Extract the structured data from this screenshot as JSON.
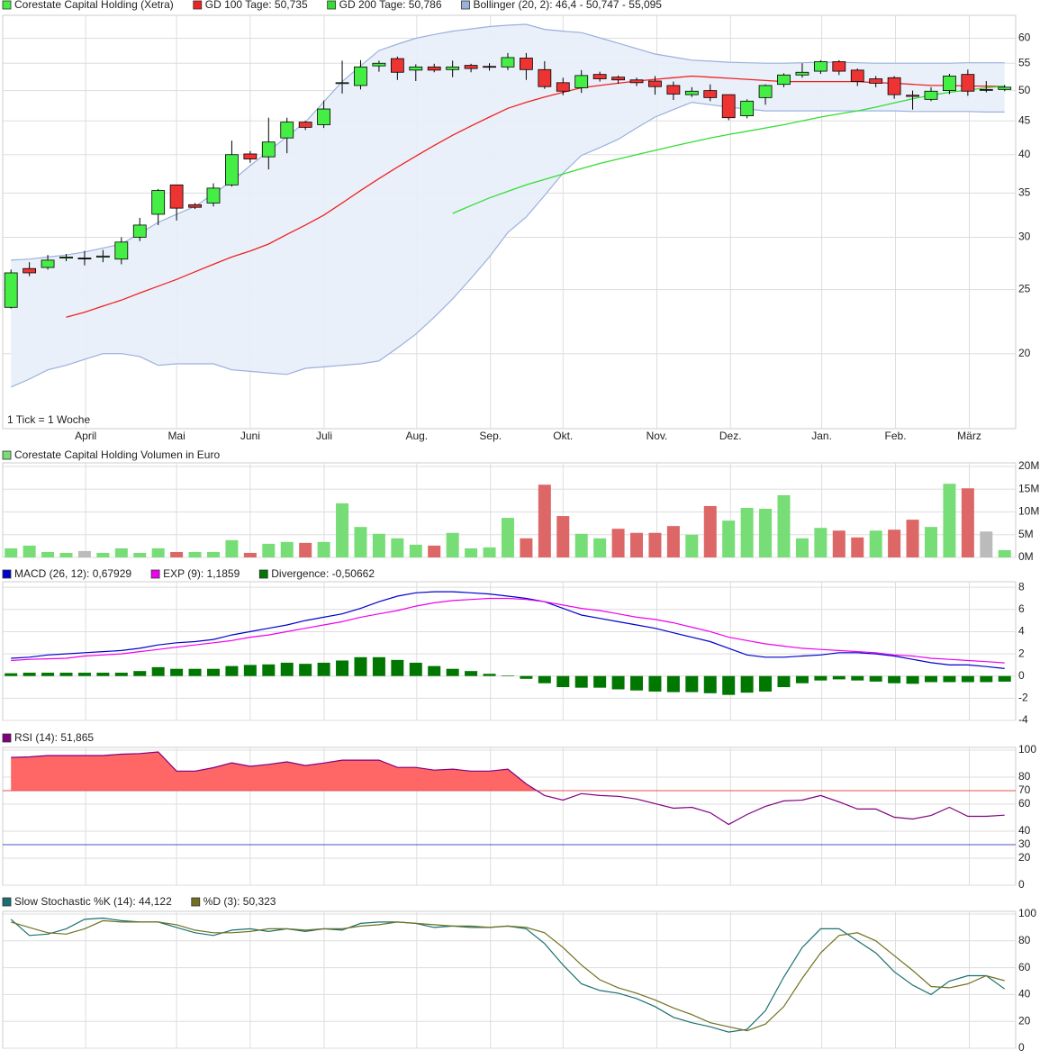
{
  "chart_data": [
    {
      "type": "candlestick",
      "name": "Corestate Capital Holding (Xetra)",
      "color_up": "#44ee44",
      "color_down": "#ee3333",
      "categories": [
        null,
        null,
        null,
        null,
        null,
        null,
        null,
        null,
        null,
        null,
        null,
        null,
        null,
        null,
        null,
        null,
        null,
        null,
        null,
        null,
        null,
        null,
        null,
        null,
        null,
        null,
        null,
        null,
        null,
        null,
        null,
        null,
        null,
        null,
        null,
        null,
        null,
        null,
        null,
        null,
        null,
        null,
        null,
        null,
        null,
        null,
        null,
        null,
        null,
        null,
        null,
        null,
        null,
        null,
        null
      ],
      "open": [
        23.5,
        26.9,
        27.0,
        27.9,
        27.9,
        28.0,
        27.8,
        30.0,
        32.5,
        36.0,
        33.6,
        33.8,
        36.0,
        40.1,
        39.7,
        42.4,
        44.8,
        44.4,
        51.3,
        50.9,
        54.5,
        55.9,
        53.7,
        54.3,
        53.8,
        54.6,
        54.4,
        54.3,
        56.0,
        53.8,
        51.4,
        50.5,
        52.9,
        52.4,
        51.9,
        51.7,
        50.9,
        49.3,
        50.0,
        49.3,
        45.8,
        48.8,
        51.1,
        52.8,
        53.5,
        55.3,
        53.7,
        52.1,
        52.3,
        49.2,
        48.5,
        50.0,
        52.9,
        50.2,
        50.2
      ],
      "high": [
        26.8,
        27.5,
        28.2,
        28.3,
        28.6,
        28.7,
        30.0,
        32.1,
        35.5,
        36.0,
        33.8,
        36.2,
        42.0,
        40.5,
        45.5,
        45.5,
        45.0,
        48.3,
        55.5,
        55.6,
        55.5,
        56.3,
        54.8,
        54.9,
        55.5,
        54.9,
        55.0,
        57.0,
        57.0,
        55.4,
        52.3,
        53.7,
        53.4,
        52.7,
        52.3,
        52.6,
        51.6,
        50.6,
        51.1,
        49.3,
        48.5,
        51.1,
        53.1,
        55.0,
        55.6,
        55.6,
        54.0,
        52.6,
        52.6,
        50.0,
        50.6,
        53.0,
        53.8,
        51.7,
        51.0
      ],
      "low": [
        23.4,
        26.2,
        26.8,
        27.6,
        27.2,
        27.5,
        27.3,
        29.6,
        31.3,
        31.8,
        33.1,
        33.4,
        35.8,
        38.9,
        38.0,
        40.2,
        43.6,
        43.9,
        49.5,
        50.2,
        53.4,
        51.9,
        51.7,
        53.3,
        52.4,
        53.3,
        53.6,
        53.7,
        51.9,
        50.3,
        49.2,
        49.6,
        51.6,
        51.2,
        50.8,
        49.3,
        48.4,
        48.9,
        48.2,
        45.1,
        45.4,
        47.6,
        50.6,
        52.3,
        53.0,
        52.8,
        50.8,
        50.6,
        48.6,
        46.8,
        48.2,
        49.4,
        49.1,
        49.7,
        49.9
      ],
      "close": [
        26.5,
        26.5,
        27.7,
        28.0,
        27.9,
        28.1,
        29.5,
        31.3,
        35.3,
        33.2,
        33.3,
        35.6,
        40.0,
        39.4,
        41.8,
        44.8,
        44.0,
        46.9,
        51.4,
        54.3,
        55.0,
        53.3,
        54.3,
        53.7,
        54.3,
        54.0,
        54.3,
        56.1,
        53.8,
        50.7,
        49.9,
        52.7,
        52.1,
        51.9,
        51.4,
        50.7,
        49.4,
        49.9,
        48.8,
        45.5,
        48.2,
        50.9,
        52.8,
        53.3,
        55.3,
        53.5,
        51.6,
        51.3,
        49.3,
        49.0,
        49.9,
        52.6,
        49.9,
        50.1,
        50.6
      ],
      "series": [
        {
          "name": "GD 100 Tage: 50,735",
          "color": "#ee2222",
          "values": [
            null,
            null,
            null,
            22.7,
            23.1,
            23.6,
            24.1,
            24.7,
            25.3,
            25.9,
            26.6,
            27.3,
            28.0,
            28.6,
            29.3,
            30.3,
            31.3,
            32.4,
            33.8,
            35.3,
            36.8,
            38.3,
            39.8,
            41.3,
            42.8,
            44.2,
            45.6,
            47.0,
            48.0,
            48.9,
            49.7,
            50.5,
            50.9,
            51.3,
            51.7,
            52.0,
            52.3,
            52.6,
            52.4,
            52.2,
            52.0,
            51.8,
            51.6,
            51.6,
            51.6,
            51.6,
            51.6,
            51.4,
            51.3,
            51.1,
            50.9,
            50.9,
            50.8,
            50.8,
            50.735
          ]
        },
        {
          "name": "GD 200 Tage: 50,786",
          "color": "#33dd33",
          "values": [
            null,
            null,
            null,
            null,
            null,
            null,
            null,
            null,
            null,
            null,
            null,
            null,
            null,
            null,
            null,
            null,
            null,
            null,
            null,
            null,
            null,
            null,
            null,
            null,
            32.6,
            33.5,
            34.4,
            35.2,
            36.0,
            36.7,
            37.4,
            38.1,
            38.8,
            39.4,
            40.0,
            40.6,
            41.2,
            41.8,
            42.4,
            42.9,
            43.4,
            43.9,
            44.4,
            45.0,
            45.6,
            46.1,
            46.6,
            47.2,
            47.9,
            48.6,
            49.2,
            49.7,
            50.1,
            50.5,
            50.786
          ]
        },
        {
          "name": "Bollinger (20, 2): 46,4 - 50,747 - 55,095",
          "color": "#9ab0dd",
          "fill": "#e8eefa",
          "kind": "band",
          "upper": [
            27.7,
            27.8,
            28.0,
            28.2,
            28.5,
            28.9,
            29.3,
            30.4,
            31.6,
            32.5,
            33.4,
            34.9,
            36.5,
            38.5,
            40.5,
            42.6,
            44.8,
            48.1,
            51.6,
            54.5,
            57.5,
            58.8,
            60.0,
            60.8,
            61.5,
            62.0,
            62.5,
            62.8,
            63.0,
            61.9,
            61.5,
            61.2,
            60.1,
            59.0,
            57.9,
            56.8,
            56.2,
            55.6,
            55.4,
            55.2,
            55.1,
            55.0,
            55.0,
            55.1,
            55.2,
            55.2,
            55.1,
            55.0,
            55.0,
            55.0,
            55.0,
            55.0,
            55.1,
            55.1,
            55.095
          ],
          "lower": [
            17.8,
            18.3,
            18.9,
            19.2,
            19.6,
            20.0,
            20.0,
            19.8,
            19.2,
            19.3,
            19.3,
            19.3,
            18.9,
            18.8,
            18.7,
            18.6,
            19.0,
            19.1,
            19.2,
            19.3,
            19.5,
            20.4,
            21.4,
            22.7,
            24.2,
            26.0,
            28.0,
            30.5,
            32.2,
            34.7,
            37.5,
            39.9,
            41.0,
            42.2,
            43.9,
            45.6,
            46.8,
            48.0,
            47.6,
            47.2,
            46.9,
            46.6,
            46.6,
            46.6,
            46.6,
            46.6,
            46.6,
            46.6,
            46.6,
            46.5,
            46.5,
            46.5,
            46.5,
            46.4,
            46.4
          ]
        }
      ],
      "xlim": [
        -0.45,
        54.6
      ],
      "xticks": [
        {
          "value": 4.06,
          "label": "April"
        },
        {
          "value": 9.0,
          "label": "Mai"
        },
        {
          "value": 13.0,
          "label": "Juni"
        },
        {
          "value": 17.02,
          "label": "Juli"
        },
        {
          "value": 22.05,
          "label": "Aug."
        },
        {
          "value": 26.06,
          "label": "Sep."
        },
        {
          "value": 30.0,
          "label": "Okt."
        },
        {
          "value": 35.1,
          "label": "Nov."
        },
        {
          "value": 39.1,
          "label": "Dez."
        },
        {
          "value": 44.06,
          "label": "Jan."
        },
        {
          "value": 48.07,
          "label": "Feb."
        },
        {
          "value": 52.08,
          "label": "März"
        }
      ],
      "ylim": [
        15.4,
        65
      ],
      "yticks": [
        20,
        25,
        30,
        35,
        40,
        45,
        50,
        55,
        60
      ],
      "log_scale": true,
      "grid": true,
      "annotation": "1 Tick = 1 Woche"
    },
    {
      "type": "bar",
      "title": "Corestate Capital Holding Volumen in Euro",
      "color": "#77dd77",
      "values": [
        2000000,
        2600000,
        1200000,
        1000000,
        1400000,
        1000000,
        2000000,
        1000000,
        2000000,
        1200000,
        1200000,
        1200000,
        3800000,
        1000000,
        3000000,
        3400000,
        3200000,
        3400000,
        11900000,
        6700000,
        5200000,
        4200000,
        2800000,
        2600000,
        5400000,
        2000000,
        2200000,
        8700000,
        4200000,
        16000000,
        9100000,
        5200000,
        4200000,
        6300000,
        5400000,
        5400000,
        6900000,
        5000000,
        11300000,
        8100000,
        10900000,
        10700000,
        13700000,
        4200000,
        6500000,
        5900000,
        4400000,
        5900000,
        6100000,
        8300000,
        6700000,
        16200000,
        15200000,
        5700000,
        1600000
      ],
      "colors": [
        "#77dd77",
        "#77dd77",
        "#77dd77",
        "#77dd77",
        "#bbbbbb",
        "#77dd77",
        "#77dd77",
        "#77dd77",
        "#77dd77",
        "#dd6666",
        "#77dd77",
        "#77dd77",
        "#77dd77",
        "#dd6666",
        "#77dd77",
        "#77dd77",
        "#dd6666",
        "#77dd77",
        "#77dd77",
        "#77dd77",
        "#77dd77",
        "#77dd77",
        "#77dd77",
        "#dd6666",
        "#77dd77",
        "#77dd77",
        "#77dd77",
        "#77dd77",
        "#dd6666",
        "#dd6666",
        "#dd6666",
        "#77dd77",
        "#77dd77",
        "#dd6666",
        "#dd6666",
        "#dd6666",
        "#dd6666",
        "#77dd77",
        "#dd6666",
        "#77dd77",
        "#77dd77",
        "#77dd77",
        "#77dd77",
        "#77dd77",
        "#77dd77",
        "#dd6666",
        "#dd6666",
        "#77dd77",
        "#dd6666",
        "#dd6666",
        "#77dd77",
        "#77dd77",
        "#dd6666",
        "#bbbbbb",
        "#77dd77"
      ],
      "ylim": [
        0,
        20800000
      ],
      "yticks": [
        {
          "value": 0,
          "label": "0M"
        },
        {
          "value": 5000000,
          "label": "5M"
        },
        {
          "value": 10000000,
          "label": "10M"
        },
        {
          "value": 15000000,
          "label": "15M"
        },
        {
          "value": 20000000,
          "label": "20M"
        }
      ],
      "grid": true
    },
    {
      "type": "indicator",
      "series": [
        {
          "name": "MACD (26, 12): 0,67929",
          "color": "#0000cc",
          "values": [
            1.6,
            1.7,
            1.9,
            2.0,
            2.1,
            2.2,
            2.3,
            2.5,
            2.8,
            3.0,
            3.1,
            3.3,
            3.7,
            4.0,
            4.3,
            4.6,
            5.0,
            5.3,
            5.6,
            6.1,
            6.7,
            7.2,
            7.5,
            7.6,
            7.6,
            7.5,
            7.4,
            7.2,
            7.0,
            6.7,
            6.1,
            5.5,
            5.2,
            4.9,
            4.6,
            4.3,
            3.9,
            3.5,
            3.1,
            2.5,
            1.9,
            1.7,
            1.7,
            1.8,
            1.9,
            2.1,
            2.1,
            2.0,
            1.8,
            1.5,
            1.2,
            1.0,
            1.0,
            0.85,
            0.67929
          ]
        },
        {
          "name": "EXP (9): 1,1859",
          "color": "#ee00ee",
          "values": [
            1.4,
            1.5,
            1.55,
            1.6,
            1.8,
            1.9,
            2.0,
            2.2,
            2.4,
            2.6,
            2.8,
            3.0,
            3.2,
            3.5,
            3.7,
            4.0,
            4.3,
            4.6,
            4.9,
            5.3,
            5.6,
            5.9,
            6.3,
            6.6,
            6.8,
            6.9,
            7.0,
            7.0,
            6.9,
            6.7,
            6.4,
            6.1,
            5.9,
            5.6,
            5.3,
            5.1,
            4.8,
            4.4,
            4.0,
            3.5,
            3.2,
            2.9,
            2.7,
            2.5,
            2.4,
            2.3,
            2.2,
            2.1,
            1.9,
            1.8,
            1.6,
            1.5,
            1.4,
            1.3,
            1.1859
          ]
        },
        {
          "name": "Divergence: -0,50662",
          "color": "#007700",
          "kind": "bar",
          "values": [
            0.25,
            0.3,
            0.3,
            0.3,
            0.3,
            0.3,
            0.3,
            0.45,
            0.8,
            0.65,
            0.65,
            0.65,
            0.9,
            1.0,
            1.05,
            1.2,
            1.1,
            1.2,
            1.4,
            1.7,
            1.7,
            1.45,
            1.2,
            0.9,
            0.65,
            0.45,
            0.2,
            0.05,
            -0.25,
            -0.65,
            -1.0,
            -1.05,
            -1.05,
            -1.2,
            -1.3,
            -1.4,
            -1.45,
            -1.45,
            -1.55,
            -1.7,
            -1.5,
            -1.4,
            -1.0,
            -0.65,
            -0.4,
            -0.3,
            -0.4,
            -0.5,
            -0.65,
            -0.7,
            -0.55,
            -0.55,
            -0.55,
            -0.55,
            -0.50662
          ]
        }
      ],
      "ylim": [
        -4,
        8.5
      ],
      "yticks": [
        -4,
        -2,
        0,
        2,
        4,
        6,
        8
      ],
      "grid": true
    },
    {
      "type": "indicator",
      "series": [
        {
          "name": "RSI (14): 51,865",
          "color": "#800080",
          "values": [
            94.6,
            95,
            96,
            96,
            96,
            96,
            97,
            97.5,
            98.7,
            84.5,
            84.5,
            87,
            90.6,
            88,
            89.5,
            91.3,
            88.6,
            90.5,
            92.6,
            92.6,
            92.6,
            87.2,
            87.2,
            85.2,
            85.9,
            84.5,
            84.5,
            85.9,
            75,
            66.4,
            63,
            67.8,
            66.4,
            65.8,
            63.8,
            60.4,
            57,
            57.7,
            53.7,
            45,
            52.3,
            58.4,
            62.4,
            63,
            66.4,
            61.7,
            56.4,
            56.4,
            50.3,
            49,
            51.6,
            57.7,
            51,
            51,
            51.865
          ]
        }
      ],
      "levels": [
        {
          "value": 70,
          "color": "#e05050",
          "fill": "#ff6666"
        },
        {
          "value": 30,
          "color": "#5050c0"
        }
      ],
      "ylim": [
        0,
        102
      ],
      "yticks": [
        0,
        20,
        40,
        60,
        80,
        100
      ],
      "grid": true
    },
    {
      "type": "indicator",
      "series": [
        {
          "name": "Slow Stochastic %K (14): 44,122",
          "color": "#1a7070",
          "values": [
            96,
            84,
            85,
            89,
            96,
            97,
            95,
            94,
            94,
            90,
            86,
            84,
            88,
            89,
            87,
            89,
            87,
            89,
            88,
            93,
            94,
            94,
            93,
            90,
            91,
            90,
            90,
            91,
            89,
            78,
            62,
            48,
            43,
            41,
            37,
            31,
            23,
            19,
            16,
            12,
            14,
            28,
            53,
            75,
            89,
            89,
            80,
            71,
            57,
            47,
            40,
            50,
            54,
            54,
            44.122
          ]
        },
        {
          "name": "%D (3): 50,323",
          "color": "#707020",
          "values": [
            94,
            90,
            86,
            85,
            89,
            95,
            94,
            94,
            94,
            92,
            88,
            86,
            86,
            87,
            89,
            89,
            88,
            89,
            89,
            91,
            92,
            94,
            93,
            92,
            91,
            91,
            90,
            91,
            90,
            86,
            75,
            62,
            51,
            45,
            41,
            36,
            30,
            25,
            19,
            16,
            13,
            18,
            31,
            52,
            71,
            84,
            86,
            80,
            69,
            58,
            46,
            45,
            48,
            54,
            50.323
          ]
        }
      ],
      "ylim": [
        0,
        102
      ],
      "yticks": [
        0,
        20,
        40,
        60,
        80,
        100
      ],
      "grid": true
    }
  ]
}
